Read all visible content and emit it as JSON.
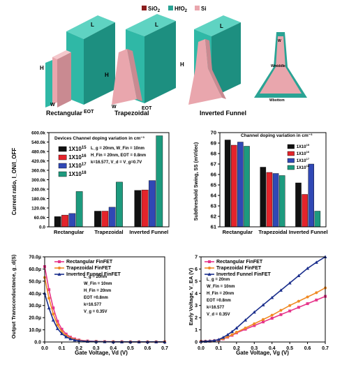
{
  "figure": {
    "legend": [
      {
        "label": "SiO",
        "sub": "2",
        "color": "#8b1e1e"
      },
      {
        "label": "HfO",
        "sub": "2",
        "color": "#2aa394"
      },
      {
        "label": "Si",
        "sub": "",
        "color": "#e9a6ad"
      }
    ],
    "devices": [
      {
        "caption": "Rectangular",
        "labels": [
          "L",
          "H",
          "W",
          "EOT"
        ]
      },
      {
        "caption": "Trapezoidal",
        "labels": [
          "L",
          "H",
          "W",
          "EOT"
        ]
      },
      {
        "caption": "Inverted Funnel",
        "labels": [
          "L",
          "H"
        ]
      },
      {
        "caption": "",
        "labels": [
          "W",
          "Wmiddle",
          "Wbottom"
        ]
      }
    ]
  },
  "chart_data": [
    {
      "type": "bar",
      "title": "Devices Channel doping variation in cm⁻³",
      "ylabel": "Current ratio, I_ON/I_OFF",
      "ylim": [
        0,
        600000
      ],
      "yticks": [
        "0.0",
        "60.0k",
        "120.0k",
        "180.0k",
        "240.0k",
        "300.0k",
        "360.0k",
        "420.0k",
        "480.0k",
        "540.0k",
        "600.0k"
      ],
      "categories": [
        "Rectangular",
        "Trapezoidal",
        "Inverted Funnel"
      ],
      "series": [
        {
          "name": "1X10^15",
          "color": "#111111",
          "values": [
            65000,
            100000,
            232000
          ]
        },
        {
          "name": "1X10^16",
          "color": "#e3242b",
          "values": [
            75000,
            100000,
            235000
          ]
        },
        {
          "name": "1X10^17",
          "color": "#3048b5",
          "values": [
            85000,
            125000,
            295000
          ]
        },
        {
          "name": "1X10^18",
          "color": "#1d9a7e",
          "values": [
            225000,
            285000,
            580000
          ]
        }
      ],
      "annotations": [
        "L_g = 20nm, W_Fin = 10nm",
        "H_Fin = 20nm, EOT = 0.8nm",
        "k=16.577, V_d = V_g=0.7V"
      ]
    },
    {
      "type": "bar",
      "title": "Channel doping variation in cm⁻³",
      "ylabel": "Subthreshold Swing, SS (mV/dec)",
      "ylim": [
        61,
        70
      ],
      "yticks": [
        "61",
        "62",
        "63",
        "64",
        "65",
        "66",
        "67",
        "68",
        "69",
        "70"
      ],
      "categories": [
        "Rectangular",
        "Trapezoidal",
        "Inverted Funnel"
      ],
      "series": [
        {
          "name": "1X10^15",
          "color": "#111111",
          "values": [
            69.3,
            66.7,
            65.2
          ]
        },
        {
          "name": "1X10^16",
          "color": "#e3242b",
          "values": [
            68.8,
            66.2,
            64.1
          ]
        },
        {
          "name": "1X10^17",
          "color": "#3048b5",
          "values": [
            69.1,
            66.1,
            67.0
          ]
        },
        {
          "name": "1X10^18",
          "color": "#1d9a7e",
          "values": [
            68.7,
            65.9,
            62.5
          ]
        }
      ]
    },
    {
      "type": "line",
      "ylabel": "Output Transconductance, g_d(S)",
      "xlabel": "Gate Voltage, Vd (V)",
      "xlim": [
        0,
        0.7
      ],
      "ylim": [
        0,
        7e-05
      ],
      "xticks": [
        "0.0",
        "0.1",
        "0.2",
        "0.3",
        "0.4",
        "0.5",
        "0.6",
        "0.7"
      ],
      "yticks": [
        "0.0",
        "10.0µ",
        "20.0µ",
        "30.0µ",
        "40.0µ",
        "50.0µ",
        "60.0µ",
        "70.0µ"
      ],
      "x": [
        0.0,
        0.025,
        0.05,
        0.075,
        0.1,
        0.125,
        0.15,
        0.175,
        0.2,
        0.25,
        0.3,
        0.35,
        0.4,
        0.45,
        0.5,
        0.55,
        0.6,
        0.65,
        0.7
      ],
      "series": [
        {
          "name": "Rectangular FinFET",
          "color": "#e6358a",
          "marker": "square",
          "values": [
            6.2e-05,
            4.3e-05,
            2.8e-05,
            1.7e-05,
            1.05e-05,
            6.5e-06,
            4e-06,
            2.5e-06,
            1.6e-06,
            8e-07,
            5e-07,
            3e-07,
            2e-07,
            2e-07,
            1e-07,
            1e-07,
            1e-07,
            1e-07,
            1e-07
          ]
        },
        {
          "name": "Trapezoidal FinFET",
          "color": "#f08a24",
          "marker": "circle",
          "values": [
            5.3e-05,
            3.6e-05,
            2.3e-05,
            1.4e-05,
            8.5e-06,
            5.2e-06,
            3.2e-06,
            2e-06,
            1.3e-06,
            6e-07,
            4e-07,
            2e-07,
            2e-07,
            1e-07,
            1e-07,
            1e-07,
            1e-07,
            1e-07,
            1e-07
          ]
        },
        {
          "name": "Inverted Funnel FinFET",
          "color": "#1a2e8c",
          "marker": "triangle",
          "values": [
            4e-05,
            2.8e-05,
            1.8e-05,
            1.1e-05,
            6.8e-06,
            4.2e-06,
            2.6e-06,
            1.6e-06,
            1e-06,
            5e-07,
            3e-07,
            2e-07,
            1e-07,
            1e-07,
            1e-07,
            1e-07,
            1e-07,
            1e-07,
            1e-07
          ]
        }
      ],
      "annotations": [
        "L_g = 20nm",
        "W_Fin = 10nm",
        "H_Fin = 20nm",
        "EOT =0.8nm",
        "k=16.577",
        "V_g = 0.35V"
      ]
    },
    {
      "type": "line",
      "ylabel": "Early Voltage, V_EA (V)",
      "xlabel": "Gate Voltage, Vg (V)",
      "xlim": [
        0,
        0.7
      ],
      "ylim": [
        0,
        7
      ],
      "xticks": [
        "0.0",
        "0.1",
        "0.2",
        "0.3",
        "0.4",
        "0.5",
        "0.6",
        "0.7"
      ],
      "yticks": [
        "0",
        "1",
        "2",
        "3",
        "4",
        "5",
        "6",
        "7"
      ],
      "x": [
        0.0,
        0.025,
        0.05,
        0.075,
        0.1,
        0.125,
        0.15,
        0.175,
        0.2,
        0.25,
        0.3,
        0.35,
        0.4,
        0.45,
        0.5,
        0.55,
        0.6,
        0.65,
        0.7
      ],
      "series": [
        {
          "name": "Rectangular FinFET",
          "color": "#e6358a",
          "marker": "square",
          "values": [
            0.05,
            0.06,
            0.07,
            0.1,
            0.15,
            0.25,
            0.4,
            0.55,
            0.75,
            1.05,
            1.35,
            1.65,
            1.95,
            2.25,
            2.55,
            2.85,
            3.15,
            3.45,
            3.75
          ]
        },
        {
          "name": "Trapezoidal FinFET",
          "color": "#f08a24",
          "marker": "circle",
          "values": [
            0.05,
            0.06,
            0.07,
            0.1,
            0.15,
            0.27,
            0.43,
            0.6,
            0.8,
            1.15,
            1.5,
            1.85,
            2.2,
            2.6,
            3.0,
            3.35,
            3.7,
            4.05,
            4.45
          ]
        },
        {
          "name": "Inverted Funnel FinFET",
          "color": "#1a2e8c",
          "marker": "triangle",
          "values": [
            0.05,
            0.06,
            0.08,
            0.12,
            0.2,
            0.38,
            0.6,
            0.85,
            1.15,
            1.8,
            2.45,
            3.05,
            3.65,
            4.25,
            4.85,
            5.45,
            6.05,
            6.55,
            7.0
          ]
        }
      ],
      "annotations": [
        "L_g = 20nm",
        "W_Fin = 10nm",
        "H_Fin = 20nm",
        "EOT =0.8nm",
        "k=16.577",
        "V_d = 0.35V"
      ]
    }
  ]
}
